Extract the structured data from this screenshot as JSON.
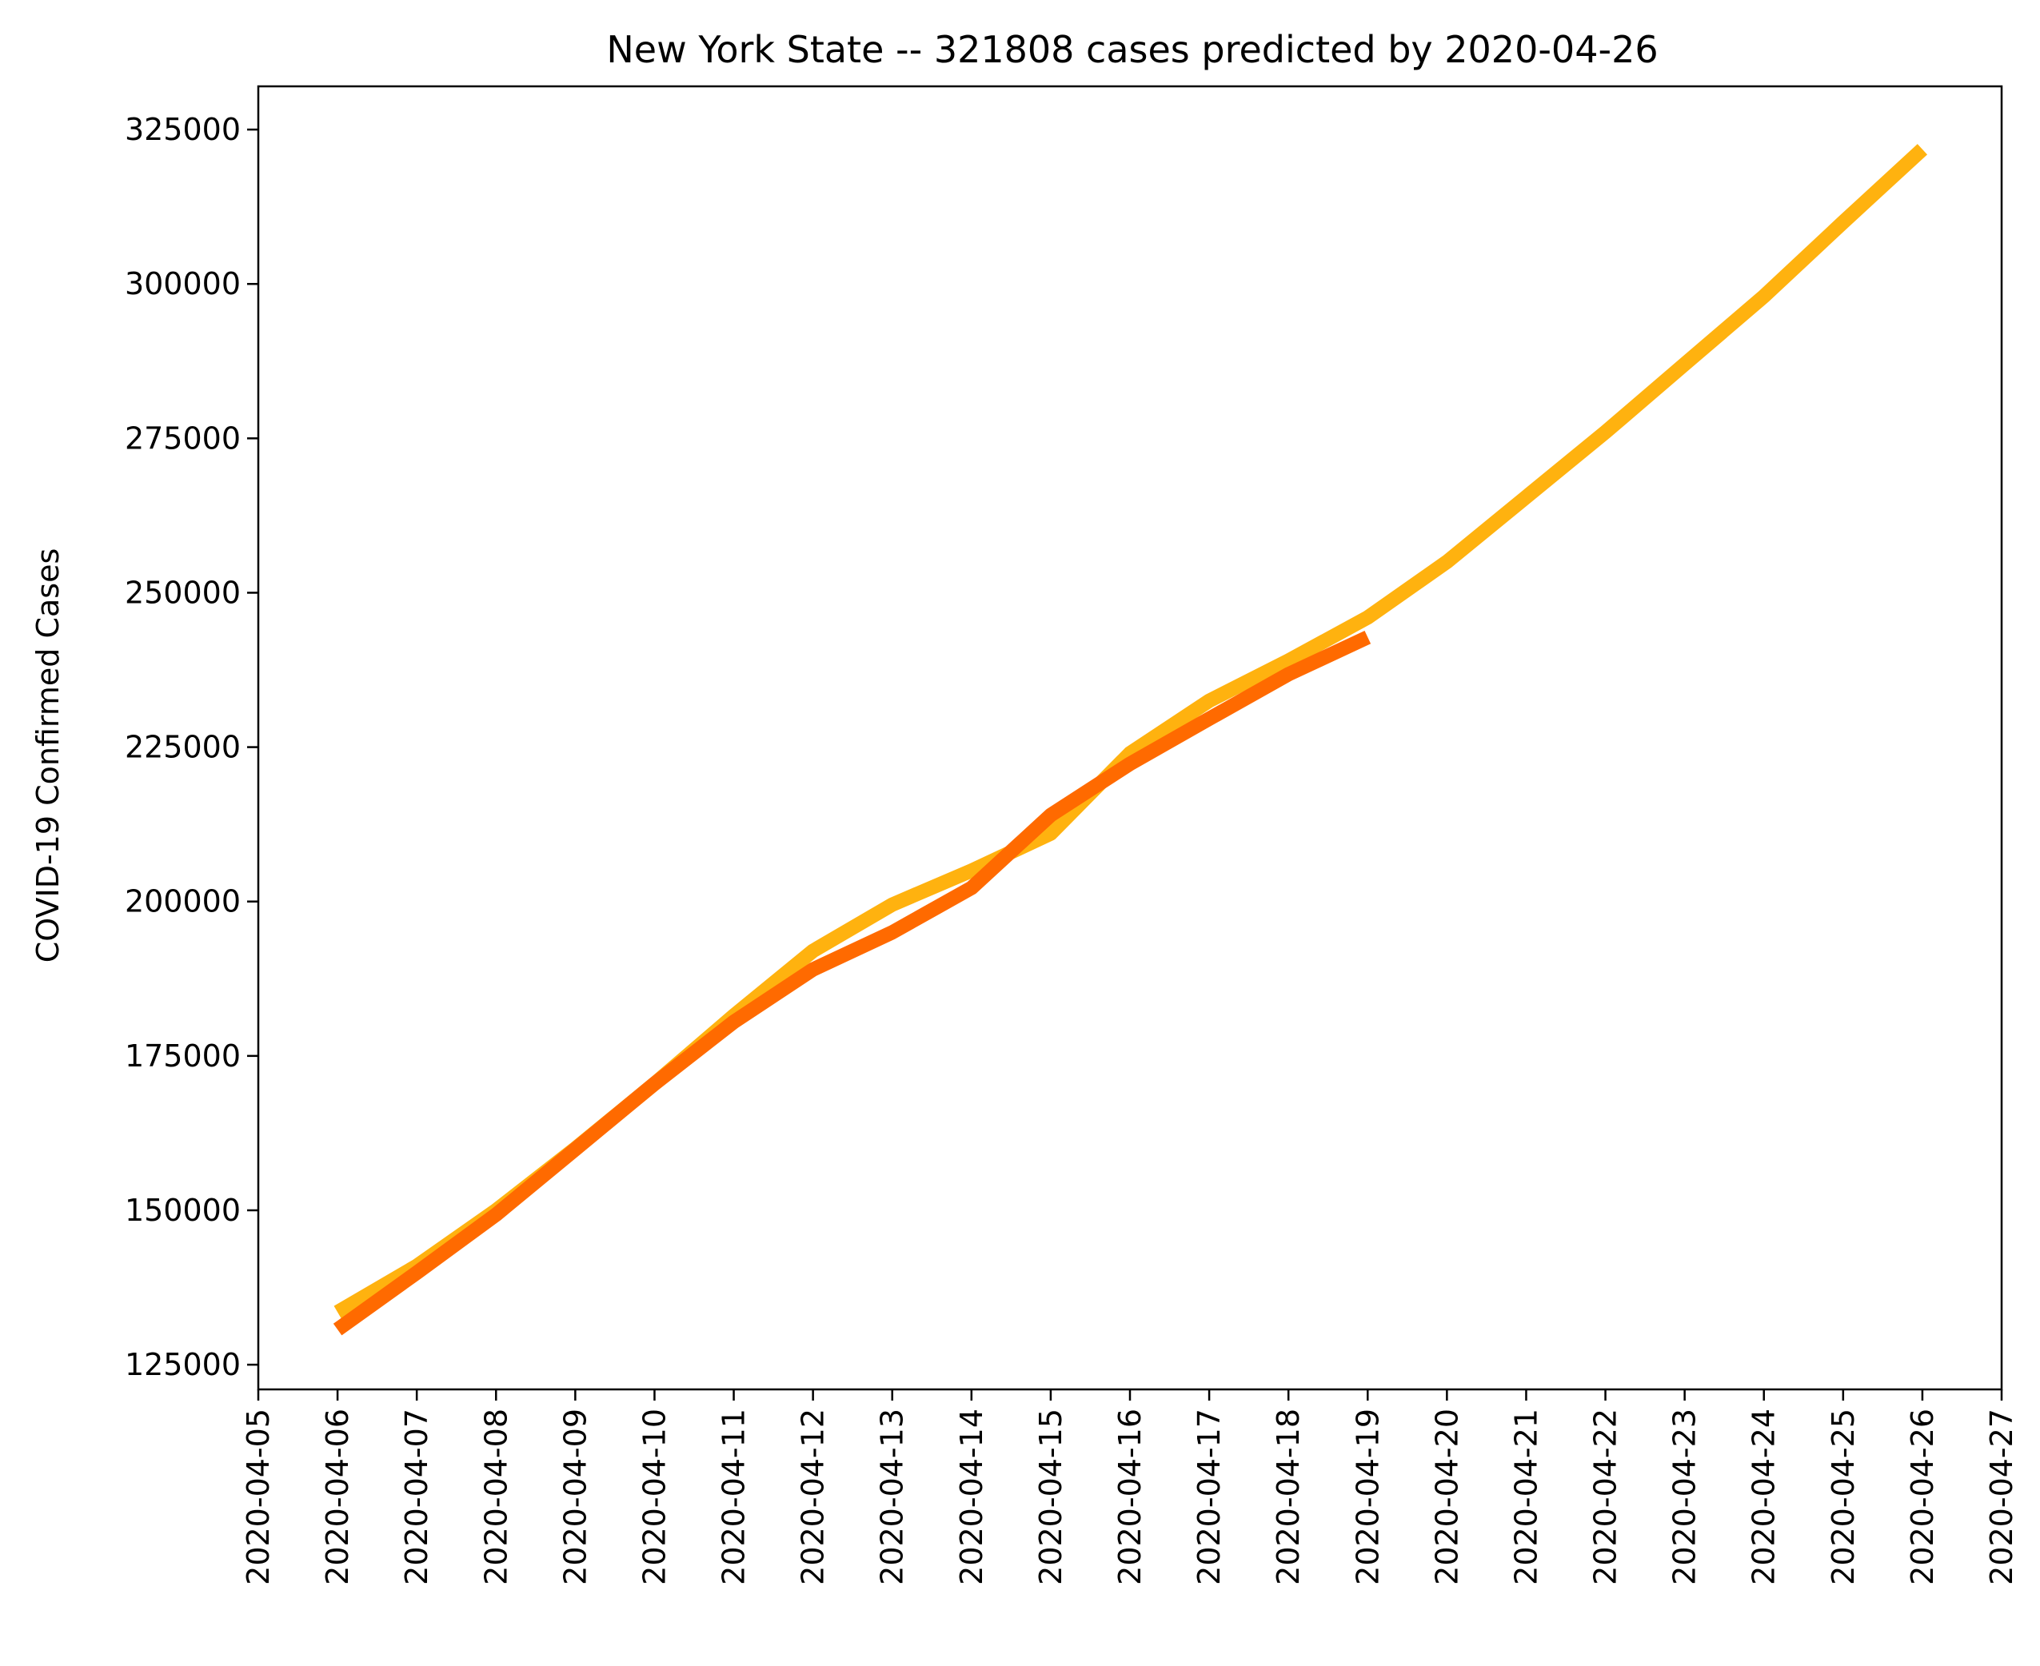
{
  "chart_data": {
    "type": "line",
    "title": "New York State  --  321808 cases predicted by 2020-04-26",
    "ylabel": "COVID-19 Confirmed Cases",
    "xlabel": "",
    "xlim": [
      "2020-04-05",
      "2020-04-27"
    ],
    "ylim": [
      121000,
      332000
    ],
    "grid": false,
    "x_ticks": [
      "2020-04-05",
      "2020-04-06",
      "2020-04-07",
      "2020-04-08",
      "2020-04-09",
      "2020-04-10",
      "2020-04-11",
      "2020-04-12",
      "2020-04-13",
      "2020-04-14",
      "2020-04-15",
      "2020-04-16",
      "2020-04-17",
      "2020-04-18",
      "2020-04-19",
      "2020-04-20",
      "2020-04-21",
      "2020-04-22",
      "2020-04-23",
      "2020-04-24",
      "2020-04-25",
      "2020-04-26",
      "2020-04-27"
    ],
    "y_ticks": [
      "125000",
      "150000",
      "175000",
      "200000",
      "225000",
      "250000",
      "275000",
      "300000",
      "325000"
    ],
    "series": [
      {
        "color": "#FFB20F",
        "x": [
          "2020-04-06",
          "2020-04-07",
          "2020-04-08",
          "2020-04-09",
          "2020-04-10",
          "2020-04-11",
          "2020-04-12",
          "2020-04-13",
          "2020-04-14",
          "2020-04-15",
          "2020-04-16",
          "2020-04-17",
          "2020-04-18",
          "2020-04-19",
          "2020-04-20",
          "2020-04-21",
          "2020-04-22",
          "2020-04-23",
          "2020-04-24",
          "2020-04-25",
          "2020-04-26"
        ],
        "y": [
          133500,
          141000,
          150000,
          160000,
          170500,
          181500,
          192000,
          199500,
          205000,
          211000,
          224000,
          232500,
          239000,
          246000,
          255000,
          265500,
          276000,
          287000,
          298000,
          310000,
          321808
        ]
      },
      {
        "color": "#FF6A00",
        "x": [
          "2020-04-06",
          "2020-04-07",
          "2020-04-08",
          "2020-04-09",
          "2020-04-10",
          "2020-04-11",
          "2020-04-12",
          "2020-04-13",
          "2020-04-14",
          "2020-04-15",
          "2020-04-16",
          "2020-04-17",
          "2020-04-18",
          "2020-04-19"
        ],
        "y": [
          130700,
          139900,
          149300,
          159900,
          170500,
          180500,
          189000,
          195000,
          202200,
          214000,
          222300,
          229600,
          236800,
          242800
        ]
      }
    ]
  }
}
